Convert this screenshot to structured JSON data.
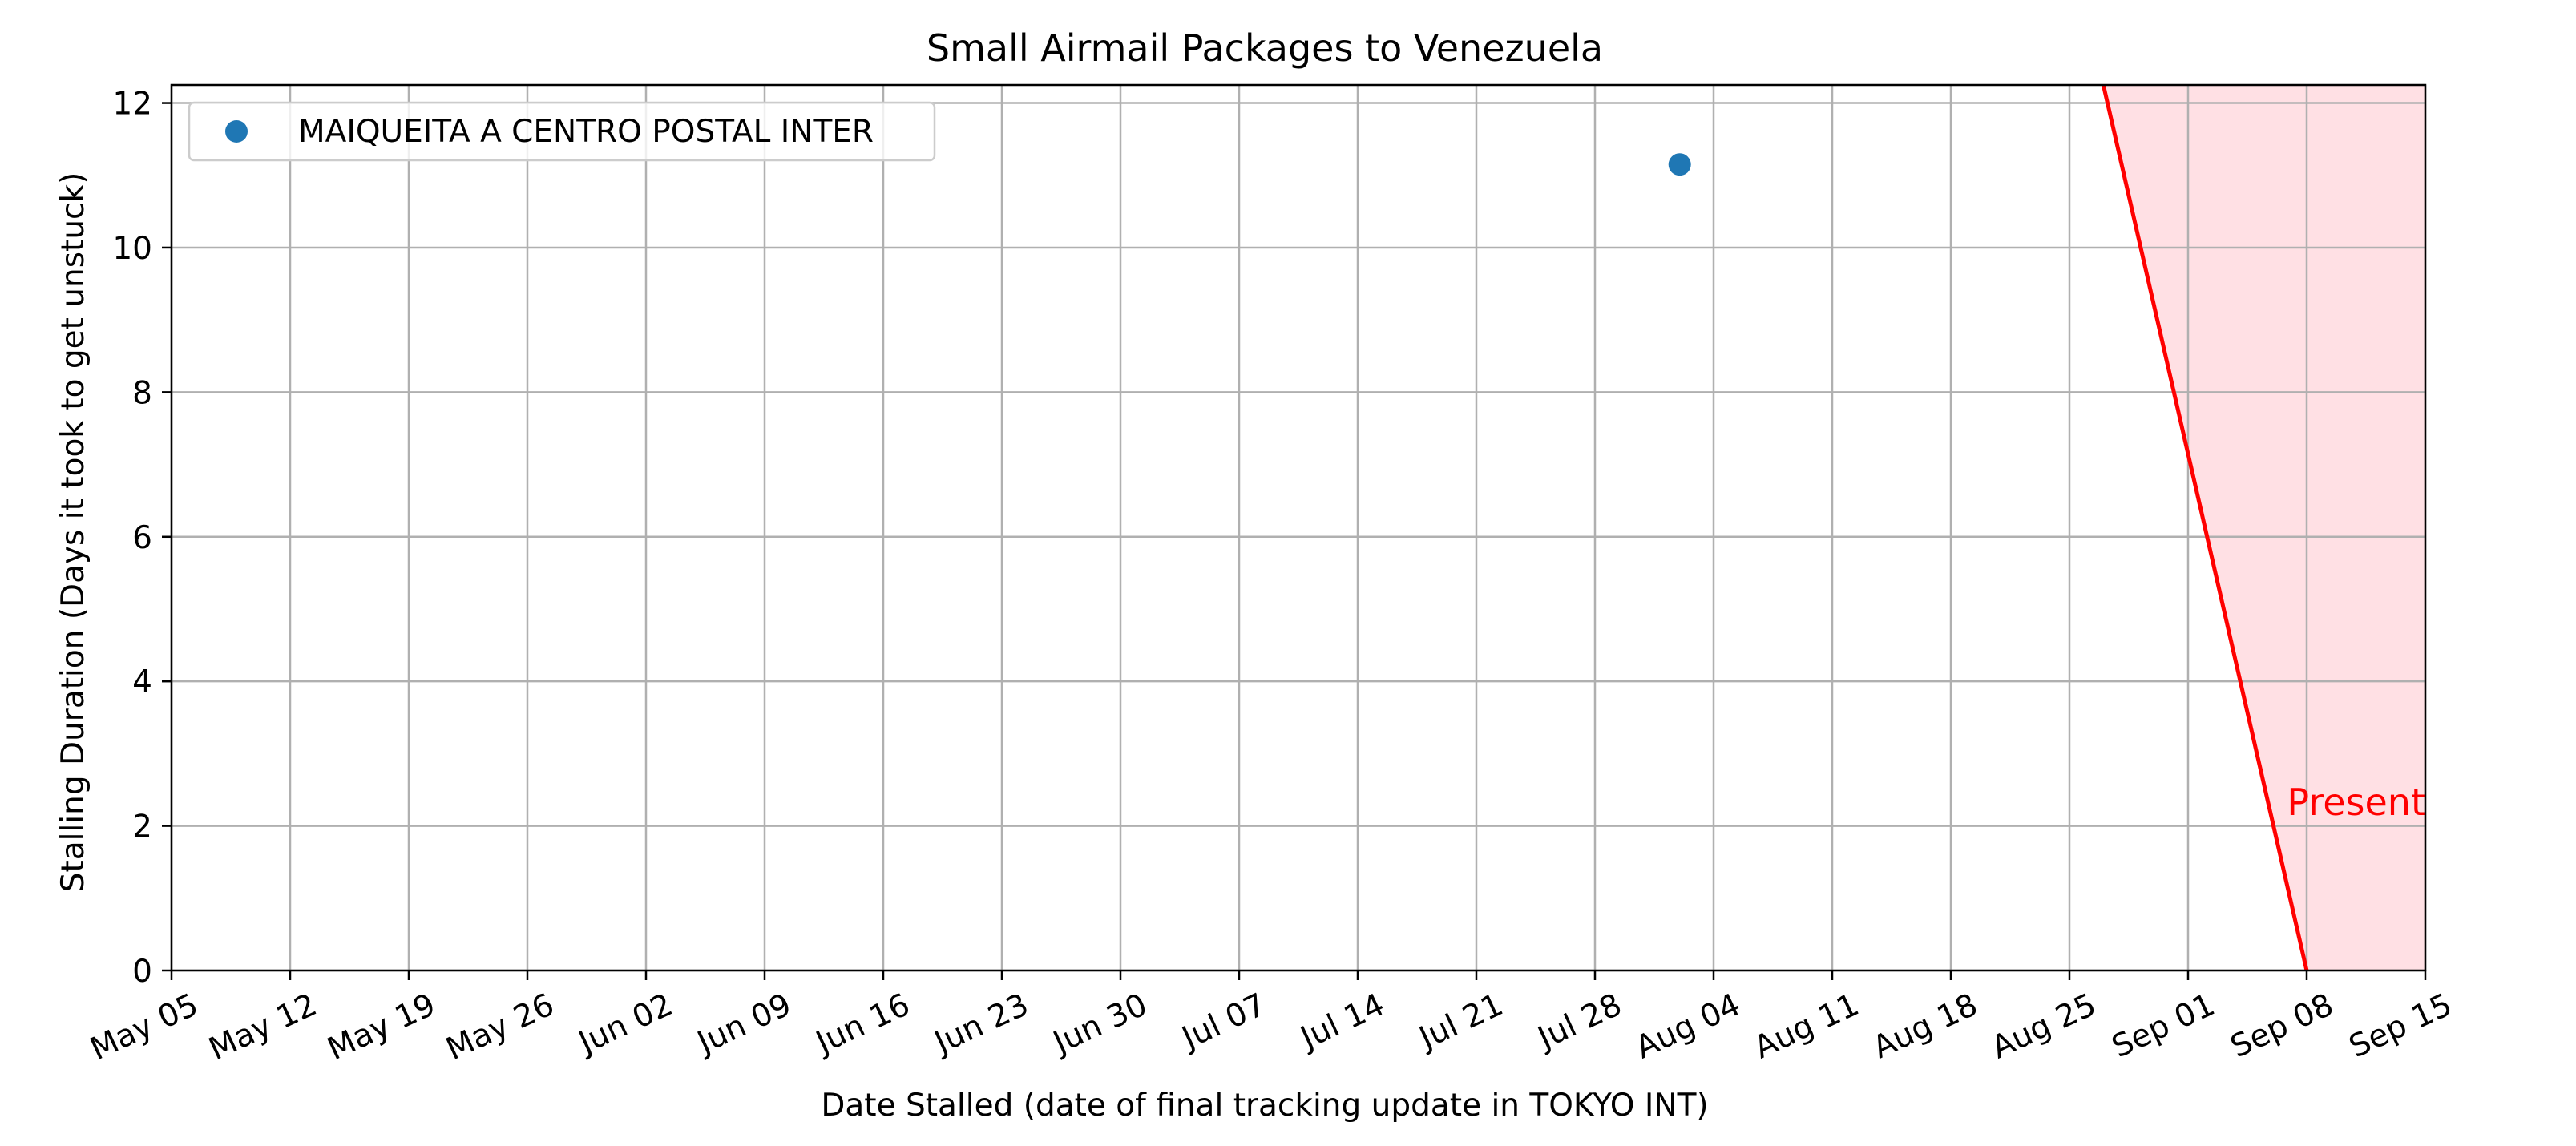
{
  "chart_data": {
    "type": "scatter",
    "title": "Small Airmail Packages to Venezuela",
    "xlabel": "Date Stalled (date of final tracking update in TOKYO INT)",
    "ylabel": "Stalling Duration (Days it took to get unstuck)",
    "x_axis": "date",
    "xlim": [
      "2024-05-05",
      "2024-09-15"
    ],
    "ylim": [
      0,
      12.25
    ],
    "x_ticks": [
      {
        "date": "2024-05-05",
        "label": "May 05"
      },
      {
        "date": "2024-05-12",
        "label": "May 12"
      },
      {
        "date": "2024-05-19",
        "label": "May 19"
      },
      {
        "date": "2024-05-26",
        "label": "May 26"
      },
      {
        "date": "2024-06-02",
        "label": "Jun 02"
      },
      {
        "date": "2024-06-09",
        "label": "Jun 09"
      },
      {
        "date": "2024-06-16",
        "label": "Jun 16"
      },
      {
        "date": "2024-06-23",
        "label": "Jun 23"
      },
      {
        "date": "2024-06-30",
        "label": "Jun 30"
      },
      {
        "date": "2024-07-07",
        "label": "Jul 07"
      },
      {
        "date": "2024-07-14",
        "label": "Jul 14"
      },
      {
        "date": "2024-07-21",
        "label": "Jul 21"
      },
      {
        "date": "2024-07-28",
        "label": "Jul 28"
      },
      {
        "date": "2024-08-04",
        "label": "Aug 04"
      },
      {
        "date": "2024-08-11",
        "label": "Aug 11"
      },
      {
        "date": "2024-08-18",
        "label": "Aug 18"
      },
      {
        "date": "2024-08-25",
        "label": "Aug 25"
      },
      {
        "date": "2024-09-01",
        "label": "Sep 01"
      },
      {
        "date": "2024-09-08",
        "label": "Sep 08"
      },
      {
        "date": "2024-09-15",
        "label": "Sep 15"
      }
    ],
    "y_ticks": [
      {
        "value": 0,
        "label": "0"
      },
      {
        "value": 2,
        "label": "2"
      },
      {
        "value": 4,
        "label": "4"
      },
      {
        "value": 6,
        "label": "6"
      },
      {
        "value": 8,
        "label": "8"
      },
      {
        "value": 10,
        "label": "10"
      },
      {
        "value": 12,
        "label": "12"
      }
    ],
    "grid": true,
    "legend_position": "top-left",
    "series": [
      {
        "name": "MAIQUEITA A CENTRO POSTAL INTER",
        "color": "#1f77b4",
        "points": [
          {
            "x": "2024-08-02",
            "y": 11.15
          }
        ]
      }
    ],
    "present_marker": {
      "label": "Present",
      "color": "#ff0000",
      "shade_color": "#ffe0e4",
      "line_from": {
        "x": "2024-08-27",
        "y": 12.25
      },
      "line_to": {
        "x": "2024-09-08",
        "y": 0
      },
      "shade_to": "2024-09-15"
    }
  }
}
